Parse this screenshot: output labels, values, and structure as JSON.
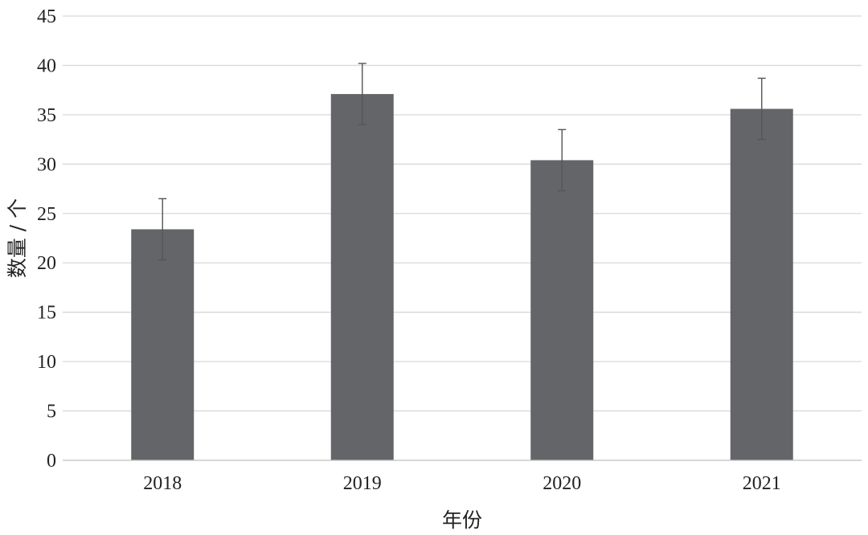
{
  "chart_data": {
    "type": "bar",
    "title": "",
    "xlabel": "年份",
    "ylabel": "数量 / 个",
    "categories": [
      "2018",
      "2019",
      "2020",
      "2021"
    ],
    "values": [
      23.4,
      37.1,
      30.4,
      35.6
    ],
    "error_bars": [
      3.1,
      3.1,
      3.1,
      3.1
    ],
    "ylim": [
      0,
      45
    ],
    "yticks": [
      "0",
      "5",
      "10",
      "15",
      "20",
      "25",
      "30",
      "35",
      "40",
      "45"
    ],
    "grid": true,
    "bar_color": "#646569"
  }
}
